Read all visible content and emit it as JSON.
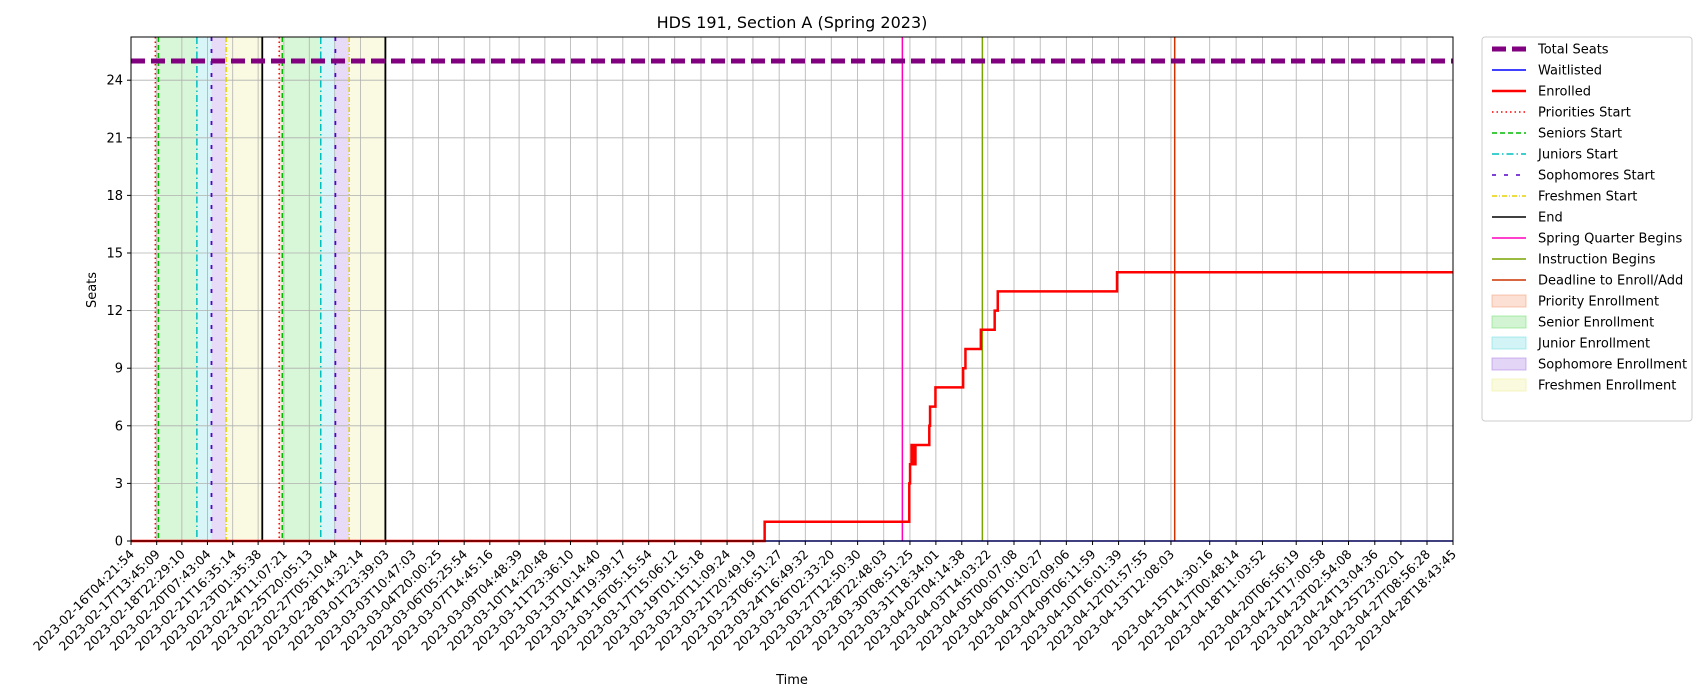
{
  "chart_data": {
    "type": "line",
    "title": "HDS 191, Section A (Spring 2023)",
    "xlabel": "Time",
    "ylabel": "Seats",
    "ylim": [
      0,
      26.25
    ],
    "yticks": [
      0,
      3,
      6,
      9,
      12,
      15,
      18,
      21,
      24
    ],
    "xlim": [
      "2023-02-16T04:21:54",
      "2023-04-28T18:43:45"
    ],
    "xticks": [
      "2023-02-16T04:21:54",
      "2023-02-17T13:45:09",
      "2023-02-18T22:29:10",
      "2023-02-20T07:43:04",
      "2023-02-21T16:35:14",
      "2023-02-23T01:35:38",
      "2023-02-24T11:07:21",
      "2023-02-25T20:05:13",
      "2023-02-27T05:10:44",
      "2023-02-28T14:32:14",
      "2023-03-01T23:39:03",
      "2023-03-03T10:47:03",
      "2023-03-04T20:00:25",
      "2023-03-06T05:25:54",
      "2023-03-07T14:45:16",
      "2023-03-09T04:48:39",
      "2023-03-10T14:20:48",
      "2023-03-11T23:36:10",
      "2023-03-13T10:14:40",
      "2023-03-14T19:39:17",
      "2023-03-16T05:15:54",
      "2023-03-17T15:06:12",
      "2023-03-19T01:15:18",
      "2023-03-20T11:09:24",
      "2023-03-21T20:49:19",
      "2023-03-23T06:51:27",
      "2023-03-24T16:49:32",
      "2023-03-26T02:33:20",
      "2023-03-27T12:50:30",
      "2023-03-28T22:48:03",
      "2023-03-30T08:51:25",
      "2023-03-31T18:34:01",
      "2023-04-02T04:14:38",
      "2023-04-03T14:03:22",
      "2023-04-05T00:07:08",
      "2023-04-06T10:10:27",
      "2023-04-07T20:09:06",
      "2023-04-09T06:11:59",
      "2023-04-10T16:01:39",
      "2023-04-12T01:57:55",
      "2023-04-13T12:08:03",
      "2023-04-15T14:30:16",
      "2023-04-17T00:48:14",
      "2023-04-18T11:03:52",
      "2023-04-20T06:56:19",
      "2023-04-21T17:00:58",
      "2023-04-23T02:54:08",
      "2023-04-24T13:04:36",
      "2023-04-25T23:02:01",
      "2023-04-27T08:56:28",
      "2023-04-28T18:43:45"
    ],
    "grid": true,
    "legend": "outside-right",
    "series": [
      {
        "name": "Total Seats",
        "color": "#800080",
        "style": "dashed-thick",
        "value": 25
      },
      {
        "name": "Waitlisted",
        "color": "#0000ff",
        "style": "solid",
        "points": [
          [
            "2023-02-16T04:21:54",
            0
          ],
          [
            "2023-04-28T18:43:45",
            0
          ]
        ]
      },
      {
        "name": "Enrolled",
        "color": "#ff0000",
        "style": "solid-thick",
        "points": [
          [
            "2023-02-16T04:21:54",
            0
          ],
          [
            "2023-03-22T12:00:00",
            0
          ],
          [
            "2023-03-22T12:00:00",
            1
          ],
          [
            "2023-03-30T08:00:00",
            1
          ],
          [
            "2023-03-30T08:00:00",
            3
          ],
          [
            "2023-03-30T09:00:00",
            3
          ],
          [
            "2023-03-30T09:00:00",
            4
          ],
          [
            "2023-03-30T11:00:00",
            4
          ],
          [
            "2023-03-30T11:00:00",
            5
          ],
          [
            "2023-03-30T13:00:00",
            5
          ],
          [
            "2023-03-30T13:00:00",
            4
          ],
          [
            "2023-03-30T16:00:00",
            4
          ],
          [
            "2023-03-30T16:00:00",
            5
          ],
          [
            "2023-03-31T10:00:00",
            5
          ],
          [
            "2023-03-31T10:00:00",
            6
          ],
          [
            "2023-03-31T11:00:00",
            6
          ],
          [
            "2023-03-31T11:00:00",
            7
          ],
          [
            "2023-03-31T18:00:00",
            7
          ],
          [
            "2023-03-31T18:00:00",
            8
          ],
          [
            "2023-04-02T06:00:00",
            8
          ],
          [
            "2023-04-02T06:00:00",
            9
          ],
          [
            "2023-04-02T09:00:00",
            9
          ],
          [
            "2023-04-02T09:00:00",
            10
          ],
          [
            "2023-04-03T05:00:00",
            10
          ],
          [
            "2023-04-03T05:00:00",
            11
          ],
          [
            "2023-04-03T23:00:00",
            11
          ],
          [
            "2023-04-03T23:00:00",
            12
          ],
          [
            "2023-04-04T03:00:00",
            12
          ],
          [
            "2023-04-04T03:00:00",
            13
          ],
          [
            "2023-04-10T14:00:00",
            13
          ],
          [
            "2023-04-10T14:00:00",
            14
          ],
          [
            "2023-04-28T18:43:45",
            14
          ]
        ]
      },
      {
        "name": "Priorities Start",
        "color": "#ff0000",
        "style": "dotted"
      },
      {
        "name": "Seniors Start",
        "color": "#00bb00",
        "style": "dashed"
      },
      {
        "name": "Juniors Start",
        "color": "#00bfbf",
        "style": "dashdot"
      },
      {
        "name": "Sophomores Start",
        "color": "#5500cc",
        "style": "loosely-dashed"
      },
      {
        "name": "Freshmen Start",
        "color": "#e6d200",
        "style": "dashdot-light"
      },
      {
        "name": "End",
        "color": "#000000",
        "style": "solid"
      },
      {
        "name": "Spring Quarter Begins",
        "color": "#ff00bb",
        "style": "solid"
      },
      {
        "name": "Instruction Begins",
        "color": "#7aa300",
        "style": "solid"
      },
      {
        "name": "Deadline to Enroll/Add",
        "color": "#cc3300",
        "style": "solid"
      },
      {
        "name": "Priority Enrollment",
        "color": "#f4a582",
        "style": "area"
      },
      {
        "name": "Senior Enrollment",
        "color": "#7ee07e",
        "style": "area"
      },
      {
        "name": "Junior Enrollment",
        "color": "#7ee0e6",
        "style": "area"
      },
      {
        "name": "Sophomore Enrollment",
        "color": "#b088e6",
        "style": "area"
      },
      {
        "name": "Freshmen Enrollment",
        "color": "#f0f0a0",
        "style": "area"
      }
    ],
    "enrollment_windows": [
      {
        "priority": "2023-02-17T12:00:00",
        "senior": "2023-02-17T16:00:00",
        "junior": "2023-02-19T18:00:00",
        "sophomore": "2023-02-20T13:00:00",
        "freshmen": "2023-02-21T08:00:00",
        "end": "2023-02-23T07:00:00"
      },
      {
        "priority": "2023-02-24T05:00:00",
        "senior": "2023-02-24T09:00:00",
        "junior": "2023-02-26T11:00:00",
        "sophomore": "2023-02-27T06:00:00",
        "freshmen": "2023-02-28T00:00:00",
        "end": "2023-03-01T23:00:00"
      }
    ],
    "events": [
      {
        "series": "Spring Quarter Begins",
        "x": "2023-03-29T23:00:00"
      },
      {
        "series": "Instruction Begins",
        "x": "2023-04-03T07:00:00"
      },
      {
        "series": "Deadline to Enroll/Add",
        "x": "2023-04-13T17:00:00"
      }
    ]
  }
}
